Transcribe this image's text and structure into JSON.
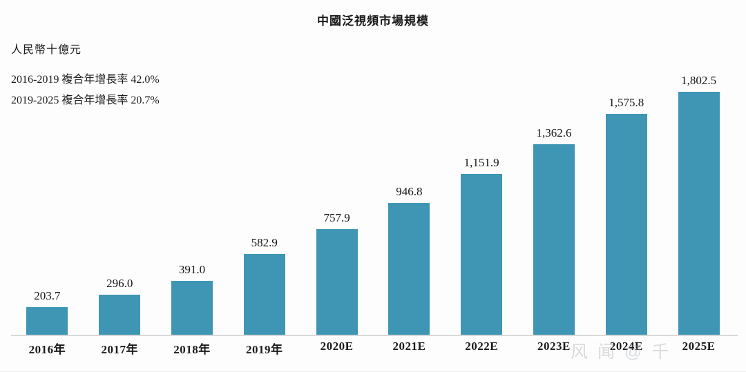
{
  "chart_data": {
    "type": "bar",
    "title": "中國泛視頻市場規模",
    "unit_label": "人民幣十億元",
    "annotations": [
      "2016-2019 複合年增長率 42.0%",
      "2019-2025 複合年增長率 20.7%"
    ],
    "categories": [
      "2016年",
      "2017年",
      "2018年",
      "2019年",
      "2020E",
      "2021E",
      "2022E",
      "2023E",
      "2024E",
      "2025E"
    ],
    "values": [
      203.7,
      296.0,
      391.0,
      582.9,
      757.9,
      946.8,
      1151.9,
      1362.6,
      1575.8,
      1802.5
    ],
    "value_labels": [
      "203.7",
      "296.0",
      "391.0",
      "582.9",
      "757.9",
      "946.8",
      "1,151.9",
      "1,362.6",
      "1,575.8",
      "1,802.5"
    ],
    "ylim": [
      0,
      1900
    ],
    "grid": false,
    "legend": "none",
    "bar_color": "#3E96B4",
    "baseline_color": "#D8D8D8"
  },
  "watermark": {
    "text": "风闻@千",
    "color": "#AEB4B9"
  }
}
